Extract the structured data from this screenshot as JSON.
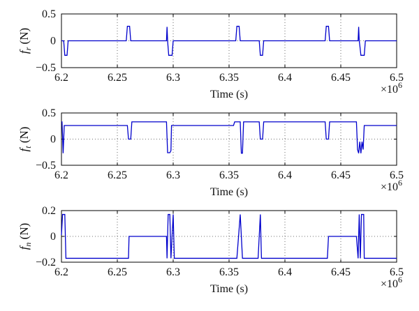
{
  "multiplier": {
    "base": "×10",
    "exponent": "6"
  },
  "chart_data": [
    {
      "type": "line",
      "ylabel_symbol": "f",
      "ylabel_sub": "r",
      "ylabel_unit": "(N)",
      "xlabel": "Time (s)",
      "xlim": [
        6.2,
        6.5
      ],
      "ylim": [
        -0.5,
        0.5
      ],
      "xticks": [
        6.2,
        6.25,
        6.3,
        6.35,
        6.4,
        6.45,
        6.5
      ],
      "xtick_labels": [
        "6.2",
        "6.25",
        "6.3",
        "6.35",
        "6.4",
        "6.45",
        "6.5"
      ],
      "yticks": [
        0.5,
        0,
        -0.5
      ],
      "ytick_labels": [
        "0.5",
        "0",
        "−0.5"
      ],
      "grid": "dotted",
      "color": "#0000cc",
      "x": [
        6.2,
        6.202,
        6.203,
        6.205,
        6.206,
        6.258,
        6.259,
        6.261,
        6.262,
        6.294,
        6.2945,
        6.295,
        6.296,
        6.297,
        6.299,
        6.3,
        6.356,
        6.357,
        6.359,
        6.36,
        6.377,
        6.378,
        6.38,
        6.381,
        6.436,
        6.437,
        6.439,
        6.44,
        6.4655,
        6.466,
        6.4665,
        6.467,
        6.468,
        6.471,
        6.472,
        6.5
      ],
      "y": [
        0,
        0,
        -0.27,
        -0.27,
        0,
        0,
        0.27,
        0.27,
        0,
        0,
        0.26,
        0,
        -0.27,
        -0.27,
        -0.27,
        0,
        0,
        0.27,
        0.27,
        0,
        0,
        -0.27,
        -0.27,
        0,
        0,
        0.27,
        0.27,
        0,
        0,
        0.26,
        0,
        -0.08,
        -0.27,
        -0.27,
        0,
        0
      ]
    },
    {
      "type": "line",
      "ylabel_symbol": "f",
      "ylabel_sub": "t",
      "ylabel_unit": "(N)",
      "xlabel": "Time (s)",
      "xlim": [
        6.2,
        6.5
      ],
      "ylim": [
        -0.5,
        0.5
      ],
      "xticks": [
        6.2,
        6.25,
        6.3,
        6.35,
        6.4,
        6.45,
        6.5
      ],
      "xtick_labels": [
        "6.2",
        "6.25",
        "6.3",
        "6.35",
        "6.4",
        "6.45",
        "6.5"
      ],
      "yticks": [
        0.5,
        0,
        -0.5
      ],
      "ytick_labels": [
        "0.5",
        "0",
        "−0.5"
      ],
      "grid": "dotted",
      "color": "#0000cc",
      "x": [
        6.2,
        6.2005,
        6.201,
        6.2015,
        6.2025,
        6.203,
        6.259,
        6.26,
        6.262,
        6.263,
        6.294,
        6.295,
        6.297,
        6.298,
        6.2985,
        6.299,
        6.3,
        6.354,
        6.355,
        6.36,
        6.361,
        6.362,
        6.363,
        6.377,
        6.378,
        6.38,
        6.381,
        6.436,
        6.437,
        6.439,
        6.44,
        6.464,
        6.465,
        6.466,
        6.467,
        6.468,
        6.469,
        6.47,
        6.471,
        6.472,
        6.5
      ],
      "y": [
        0.33,
        0.33,
        0.05,
        -0.27,
        0.26,
        0.26,
        0.26,
        0,
        0,
        0.33,
        0.33,
        -0.26,
        -0.26,
        -0.22,
        0.26,
        0.26,
        0.26,
        0.26,
        0.33,
        0.33,
        -0.27,
        -0.27,
        0.33,
        0.33,
        0,
        0,
        0.33,
        0.33,
        0,
        0,
        0.33,
        0.33,
        -0.2,
        -0.27,
        -0.05,
        -0.27,
        -0.05,
        -0.2,
        0.26,
        0.26,
        0.26
      ]
    },
    {
      "type": "line",
      "ylabel_symbol": "f",
      "ylabel_sub": "n",
      "ylabel_unit": "(N)",
      "xlabel": "Time (s)",
      "xlim": [
        6.2,
        6.5
      ],
      "ylim": [
        -0.2,
        0.2
      ],
      "xticks": [
        6.2,
        6.25,
        6.3,
        6.35,
        6.4,
        6.45,
        6.5
      ],
      "xtick_labels": [
        "6.2",
        "6.25",
        "6.3",
        "6.35",
        "6.4",
        "6.45",
        "6.5"
      ],
      "yticks": [
        0.2,
        0,
        -0.2
      ],
      "ytick_labels": [
        "0.2",
        "0",
        "−0.2"
      ],
      "grid": "dotted",
      "color": "#0000cc",
      "x": [
        6.2,
        6.201,
        6.2015,
        6.203,
        6.204,
        6.26,
        6.2605,
        6.294,
        6.2945,
        6.2955,
        6.296,
        6.297,
        6.298,
        6.3,
        6.301,
        6.357,
        6.36,
        6.362,
        6.376,
        6.378,
        6.379,
        6.438,
        6.439,
        6.464,
        6.4655,
        6.4665,
        6.4675,
        6.4685,
        6.469,
        6.4705,
        6.471,
        6.5
      ],
      "y": [
        0.01,
        0.17,
        0.17,
        0.17,
        -0.17,
        -0.17,
        0,
        0,
        -0.17,
        0.17,
        0.17,
        0.17,
        -0.17,
        0.17,
        -0.17,
        -0.17,
        0.17,
        -0.17,
        -0.17,
        0.17,
        -0.17,
        -0.17,
        0,
        0,
        -0.17,
        0.17,
        -0.17,
        0.17,
        0.17,
        0.17,
        -0.17,
        -0.17
      ]
    }
  ]
}
